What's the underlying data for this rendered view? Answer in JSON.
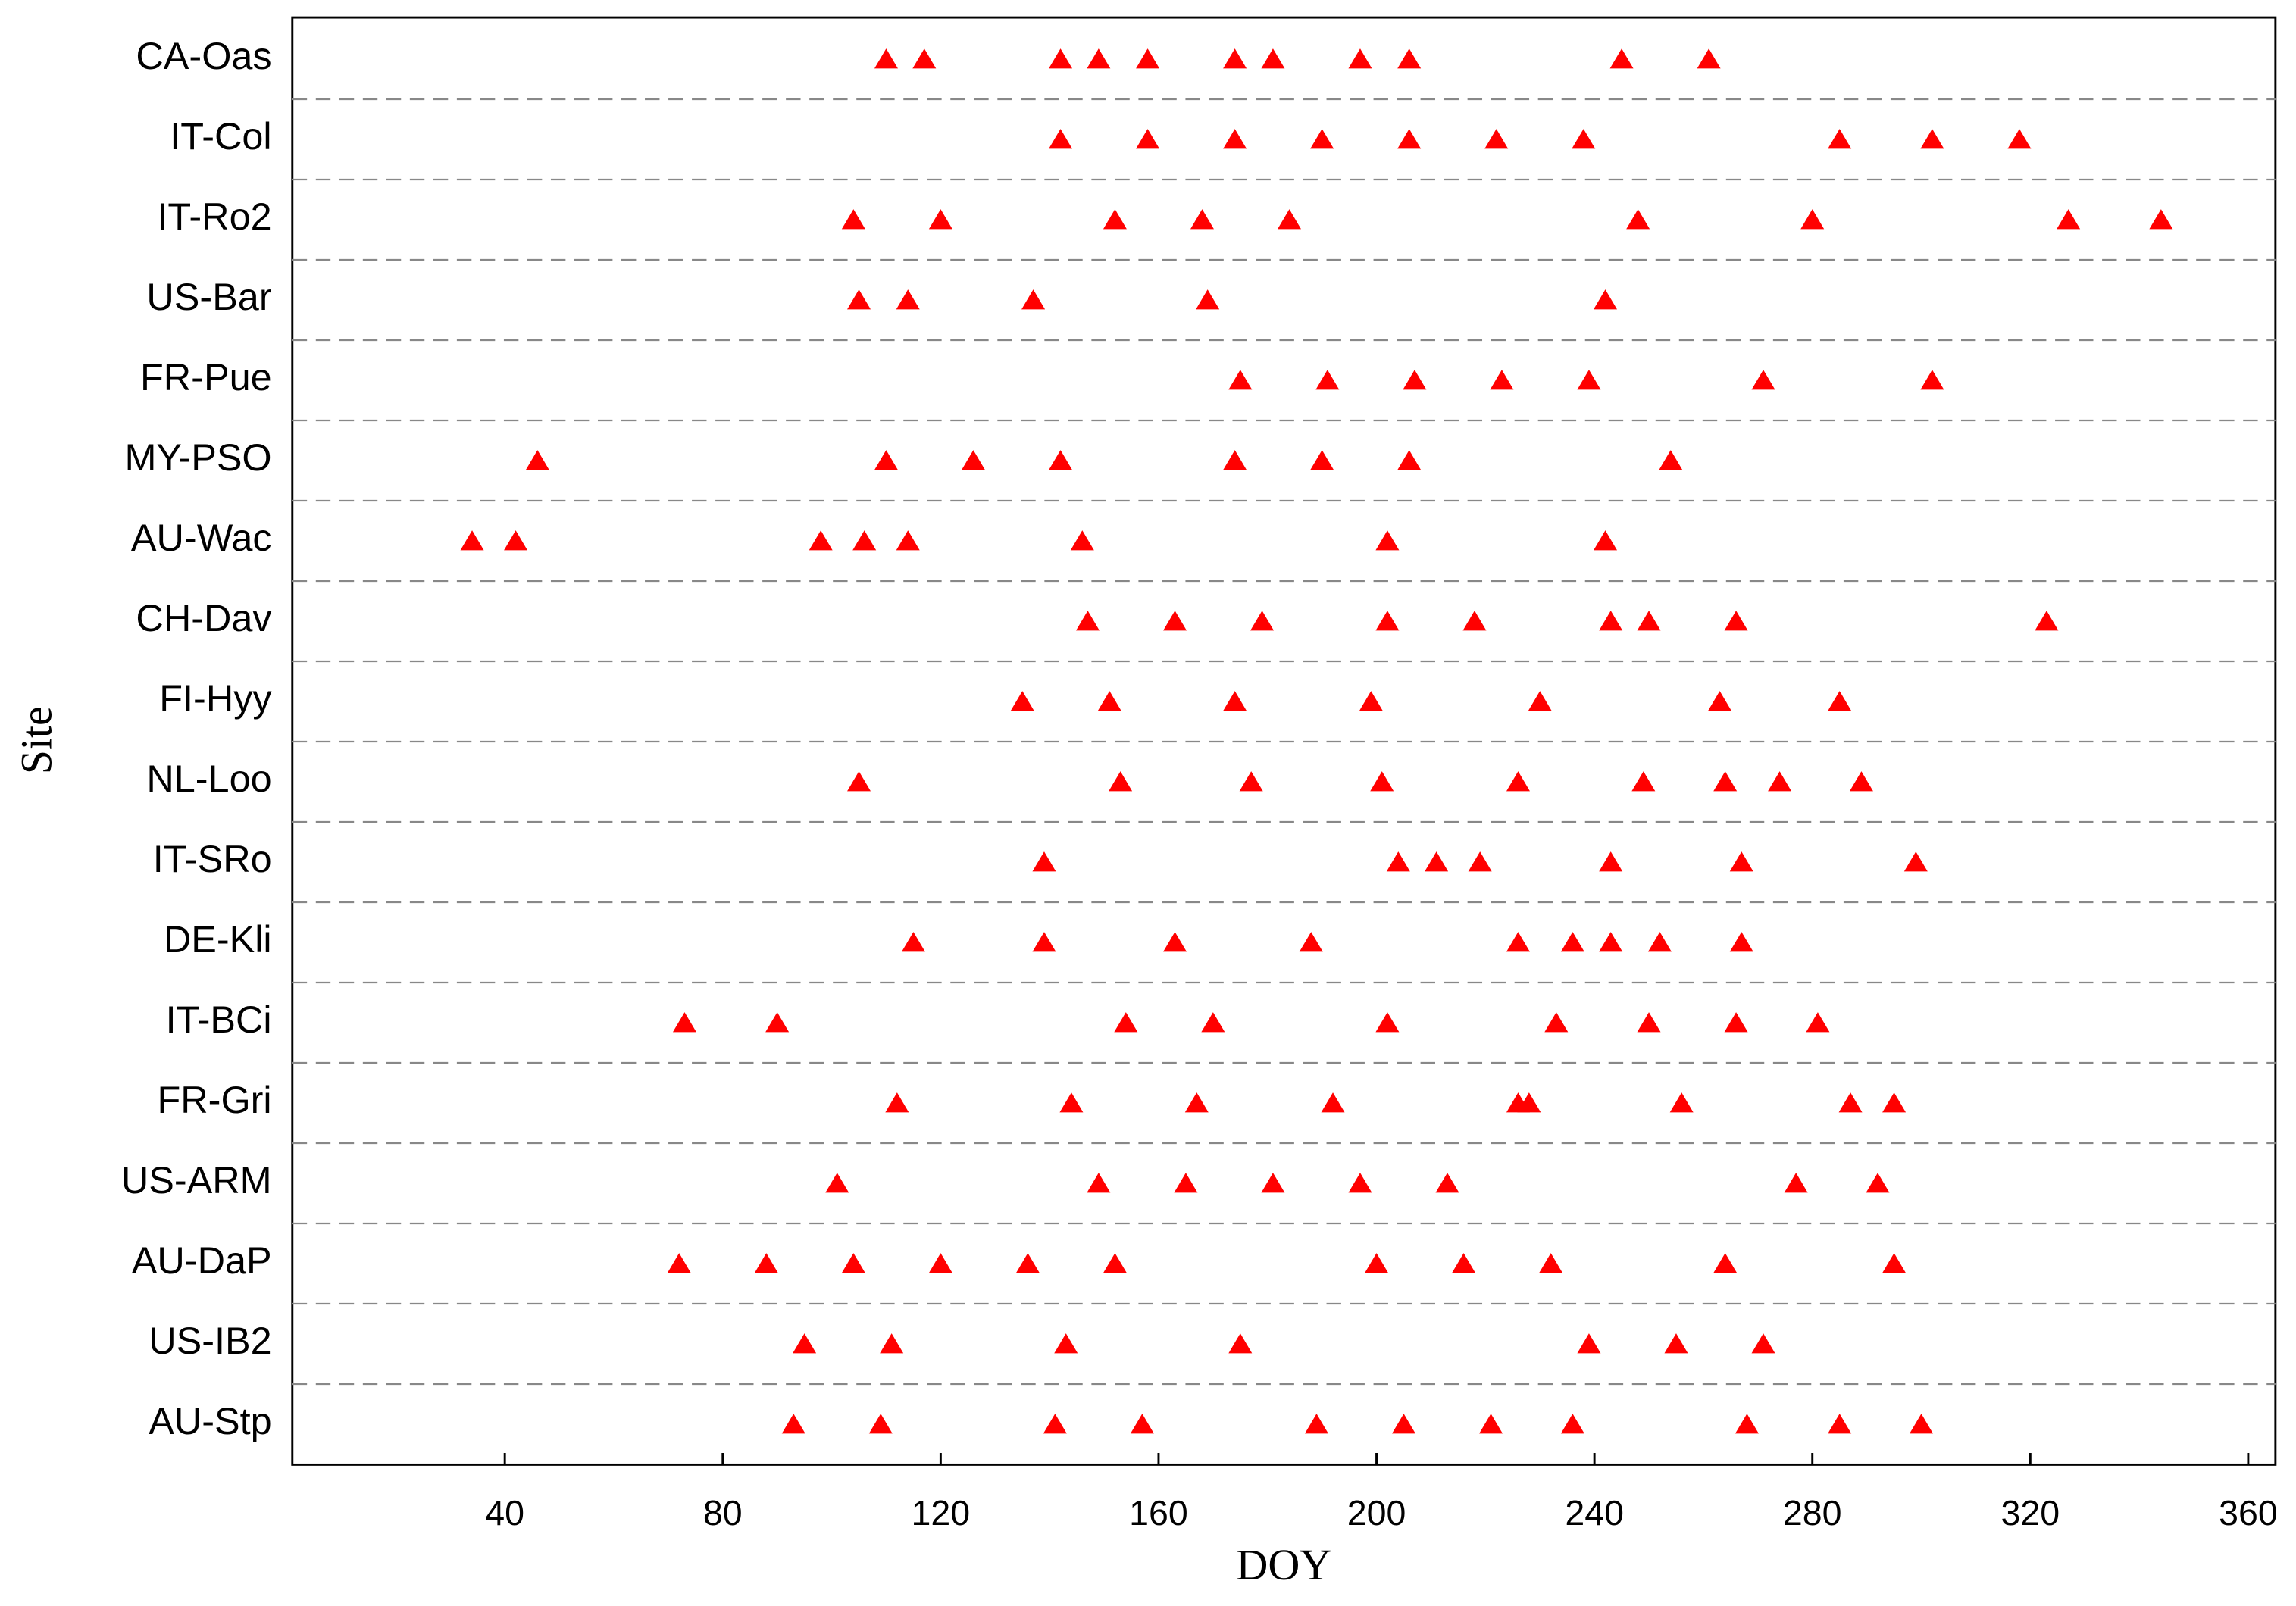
{
  "chart_data": {
    "type": "scatter",
    "xlabel": "DOY",
    "ylabel": "Site",
    "xlim": [
      1,
      365
    ],
    "xticks": [
      40,
      80,
      120,
      160,
      200,
      240,
      280,
      320,
      360
    ],
    "color": "#ff0000",
    "marker": "triangle",
    "row_separators": "dashed",
    "sites": [
      {
        "site": "CA-Oas",
        "x": [
          110,
          117,
          142,
          149,
          158,
          174,
          181,
          197,
          206,
          245,
          261
        ]
      },
      {
        "site": "IT-Col",
        "x": [
          142,
          158,
          174,
          190,
          206,
          222,
          238,
          285,
          302,
          318
        ]
      },
      {
        "site": "IT-Ro2",
        "x": [
          104,
          120,
          152,
          168,
          184,
          248,
          280,
          327,
          344
        ]
      },
      {
        "site": "US-Bar",
        "x": [
          105,
          114,
          137,
          169,
          242
        ]
      },
      {
        "site": "FR-Pue",
        "x": [
          175,
          191,
          207,
          223,
          239,
          271,
          302
        ]
      },
      {
        "site": "MY-PSO",
        "x": [
          46,
          110,
          126,
          142,
          174,
          190,
          206,
          254
        ]
      },
      {
        "site": "AU-Wac",
        "x": [
          34,
          42,
          98,
          106,
          114,
          146,
          202,
          242
        ]
      },
      {
        "site": "CH-Dav",
        "x": [
          147,
          163,
          179,
          202,
          218,
          243,
          250,
          266,
          323
        ]
      },
      {
        "site": "FI-Hyy",
        "x": [
          135,
          151,
          174,
          199,
          230,
          263,
          285
        ]
      },
      {
        "site": "NL-Loo",
        "x": [
          105,
          153,
          177,
          201,
          226,
          249,
          264,
          274,
          289
        ]
      },
      {
        "site": "IT-SRo",
        "x": [
          139,
          204,
          211,
          219,
          243,
          267,
          299
        ]
      },
      {
        "site": "DE-Kli",
        "x": [
          115,
          139,
          163,
          188,
          226,
          236,
          243,
          252,
          267
        ]
      },
      {
        "site": "IT-BCi",
        "x": [
          73,
          90,
          154,
          170,
          202,
          233,
          250,
          266,
          281
        ]
      },
      {
        "site": "FR-Gri",
        "x": [
          112,
          144,
          167,
          192,
          226,
          228,
          256,
          287,
          295
        ]
      },
      {
        "site": "US-ARM",
        "x": [
          101,
          149,
          165,
          181,
          197,
          213,
          277,
          292
        ]
      },
      {
        "site": "AU-DaP",
        "x": [
          72,
          88,
          104,
          120,
          136,
          152,
          200,
          216,
          232,
          264,
          295
        ]
      },
      {
        "site": "US-IB2",
        "x": [
          95,
          111,
          143,
          175,
          239,
          255,
          271
        ]
      },
      {
        "site": "AU-Stp",
        "x": [
          93,
          109,
          141,
          157,
          189,
          205,
          221,
          236,
          268,
          285,
          300
        ]
      }
    ]
  }
}
